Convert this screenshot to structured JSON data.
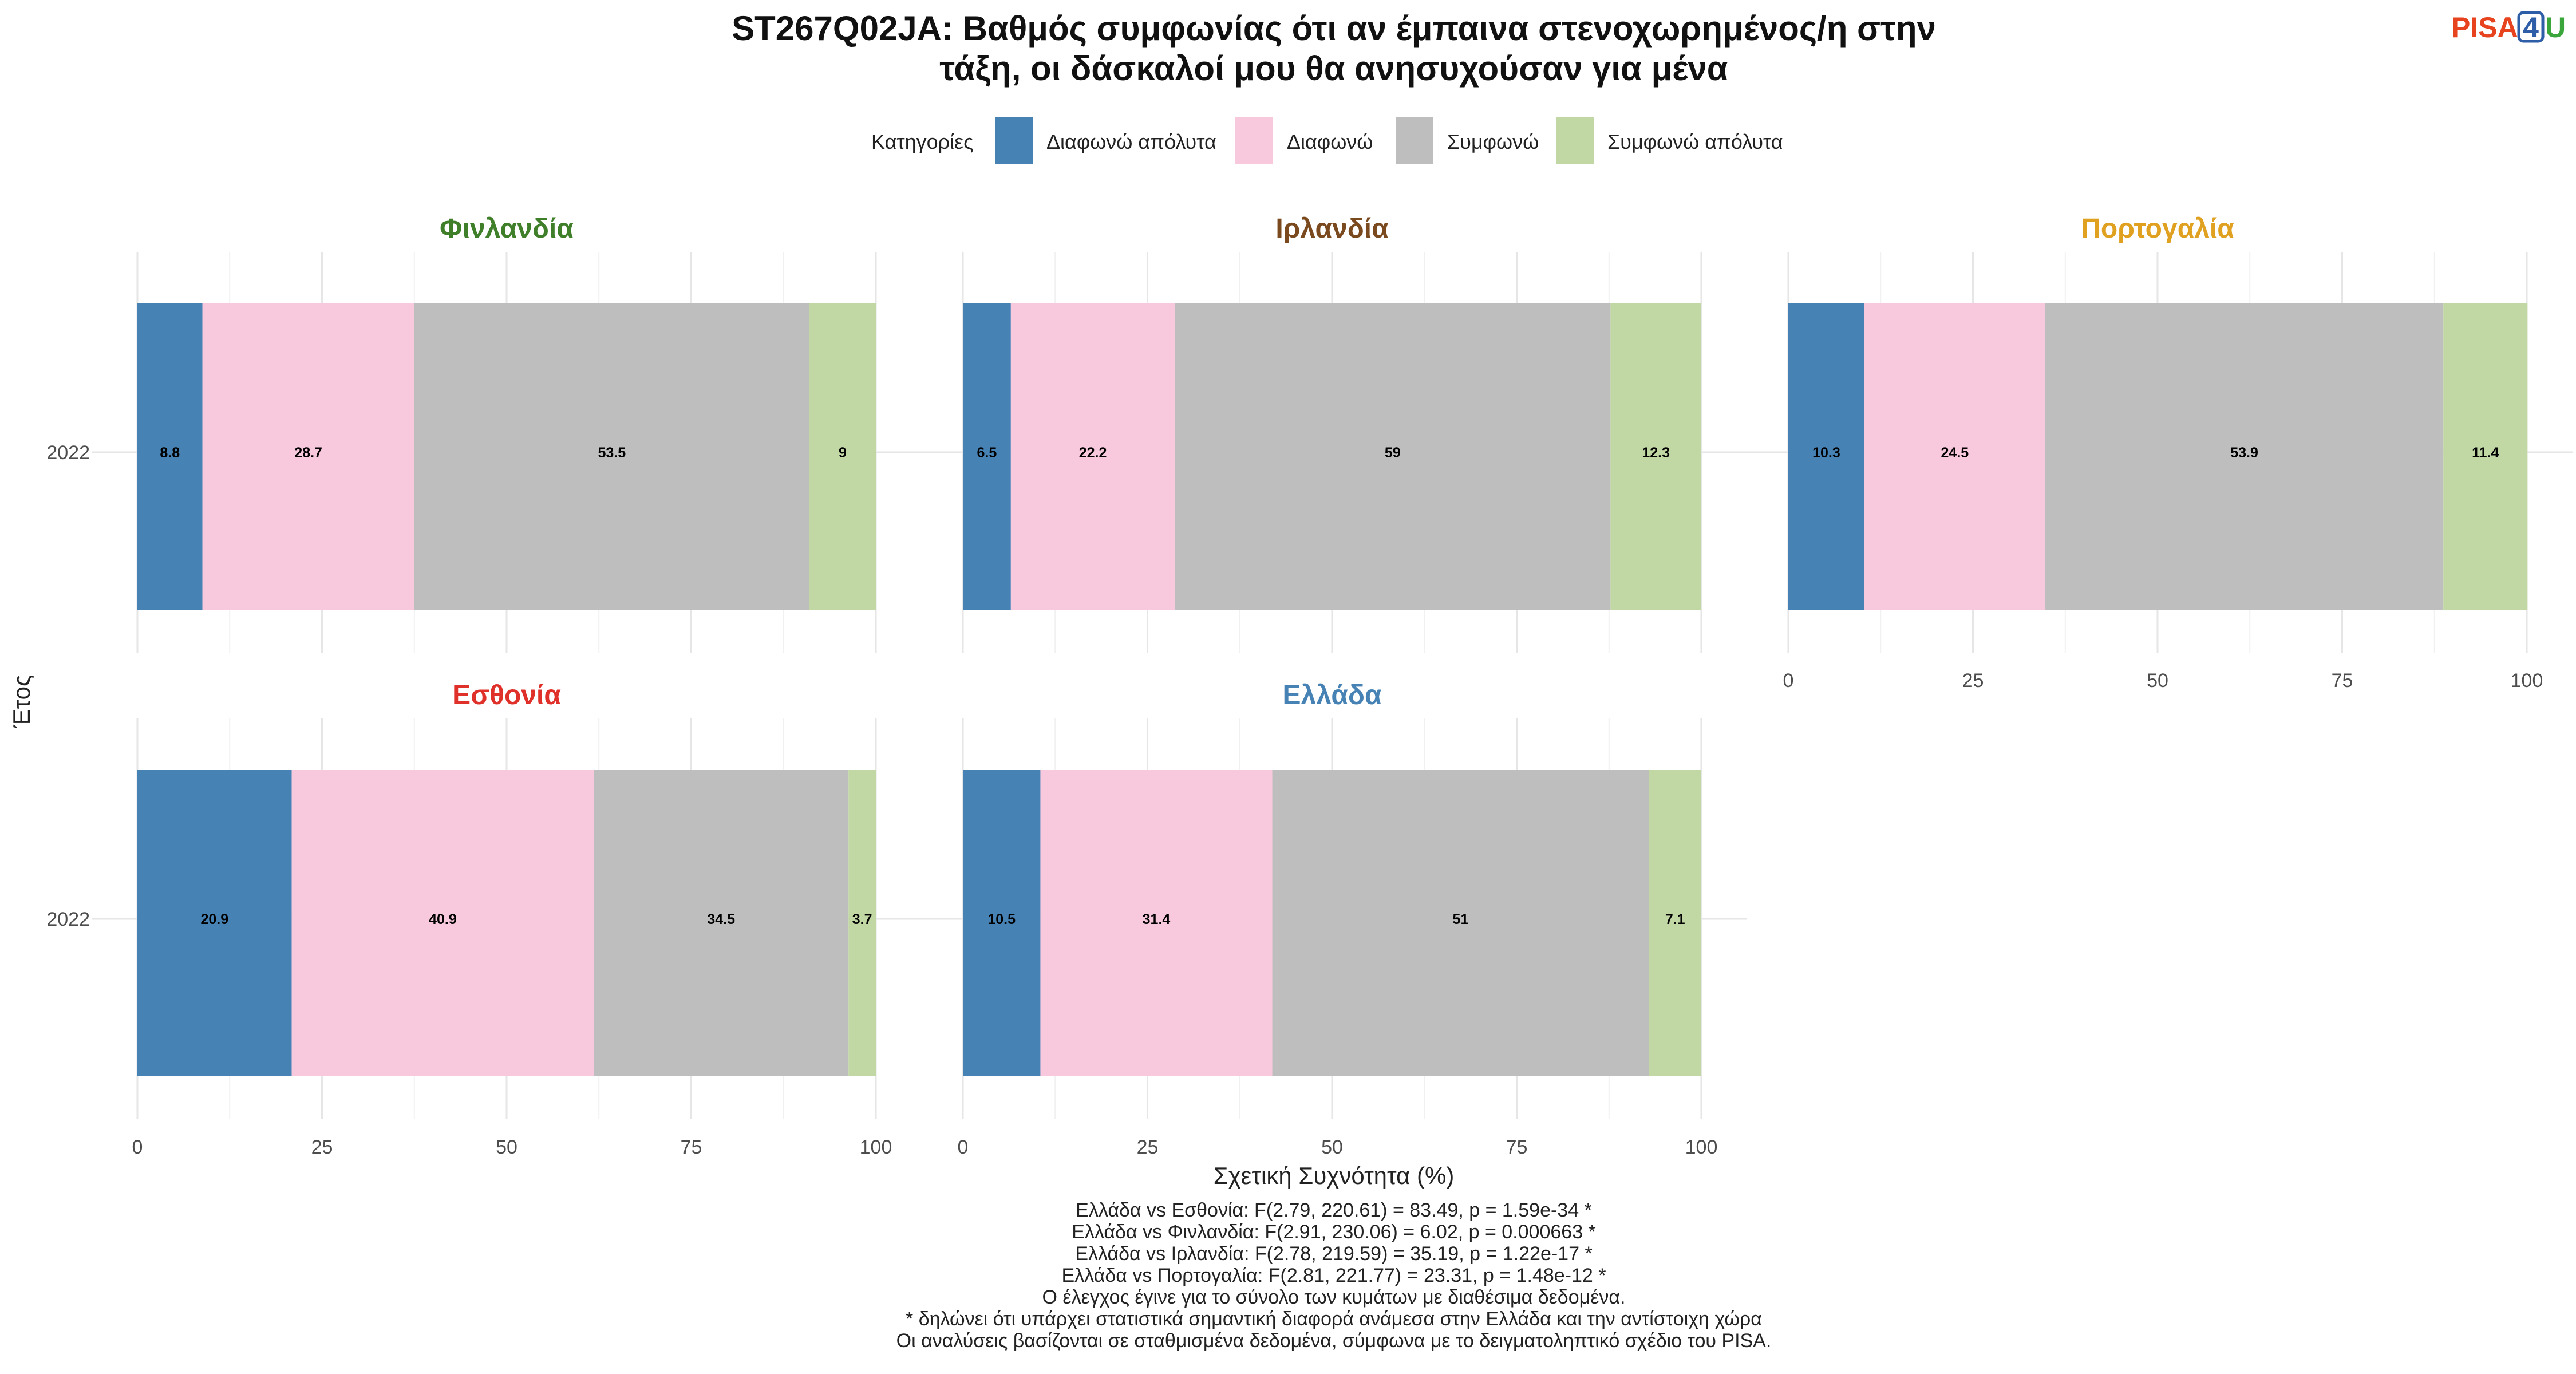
{
  "logo": {
    "part1": "PISA",
    "part2": "4",
    "part3": "U",
    "colors": [
      "#e8431f",
      "#2f5ea8",
      "#3aa53a"
    ]
  },
  "chart_data": {
    "type": "bar",
    "orientation": "horizontal-stacked",
    "title_lines": [
      "ST267Q02JA: Βαθμός συμφωνίας ότι αν έμπαινα στενοχωρημένος/η στην",
      "τάξη, οι δάσκαλοί μου θα ανησυχούσαν για μένα"
    ],
    "legend": {
      "title": "Κατηγορίες",
      "placement": "top",
      "items": [
        {
          "label": "Διαφωνώ απόλυτα",
          "color": "#4682b4"
        },
        {
          "label": "Διαφωνώ",
          "color": "#f8c8dc"
        },
        {
          "label": "Συμφωνώ",
          "color": "#bebebe"
        },
        {
          "label": "Συμφωνώ απόλυτα",
          "color": "#c1d8a5"
        }
      ]
    },
    "xlabel": "Σχετική Συχνότητα (%)",
    "ylabel": "Έτος",
    "xlim": [
      0,
      100
    ],
    "xticks": [
      "0",
      "25",
      "50",
      "75",
      "100"
    ],
    "grid": true,
    "panels": [
      {
        "name": "Φινλανδία",
        "color": "#3f7f2a",
        "year": "2022",
        "values": [
          8.8,
          28.7,
          53.5,
          9
        ]
      },
      {
        "name": "Ιρλανδία",
        "color": "#7a4a1e",
        "year": "2022",
        "values": [
          6.5,
          22.2,
          59,
          12.3
        ]
      },
      {
        "name": "Πορτογαλία",
        "color": "#e0a020",
        "year": "2022",
        "values": [
          10.3,
          24.5,
          53.9,
          11.4
        ]
      },
      {
        "name": "Εσθονία",
        "color": "#e0302a",
        "year": "2022",
        "values": [
          20.9,
          40.9,
          34.5,
          3.7
        ]
      },
      {
        "name": "Ελλάδα",
        "color": "#4682b4",
        "year": "2022",
        "values": [
          10.5,
          31.4,
          51,
          7.1
        ]
      }
    ]
  },
  "caption_lines": [
    "Ελλάδα vs Εσθονία: F(2.79, 220.61) = 83.49, p = 1.59e-34 *",
    "Ελλάδα vs Φινλανδία: F(2.91, 230.06) = 6.02, p = 0.000663 *",
    "Ελλάδα vs Ιρλανδία: F(2.78, 219.59) = 35.19, p = 1.22e-17 *",
    "Ελλάδα vs Πορτογαλία: F(2.81, 221.77) = 23.31, p = 1.48e-12 *",
    "Ο έλεγχος έγινε για το σύνολο των κυμάτων με διαθέσιμα δεδομένα.",
    "* δηλώνει ότι υπάρχει στατιστικά σημαντική διαφορά ανάμεσα στην Ελλάδα και την αντίστοιχη χώρα",
    "Οι αναλύσεις βασίζονται σε σταθμισμένα δεδομένα, σύμφωνα με το δειγματοληπτικό σχέδιο του PISA."
  ]
}
